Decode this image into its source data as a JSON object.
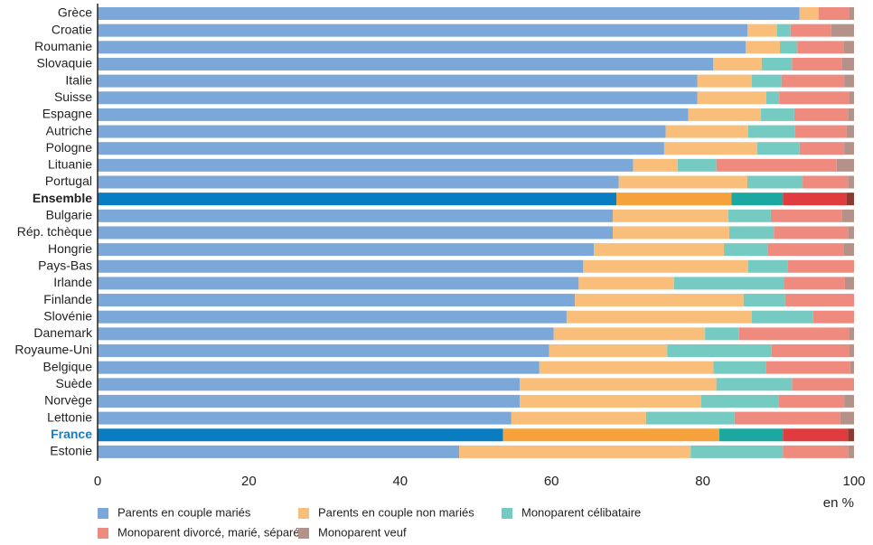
{
  "chart_data": {
    "type": "stacked_barh",
    "categories": [
      "Grèce",
      "Croatie",
      "Roumanie",
      "Slovaquie",
      "Italie",
      "Suisse",
      "Espagne",
      "Autriche",
      "Pologne",
      "Lituanie",
      "Portugal",
      "Ensemble",
      "Bulgarie",
      "Rép. tchèque",
      "Hongrie",
      "Pays-Bas",
      "Irlande",
      "Finlande",
      "Slovénie",
      "Danemark",
      "Royaume-Uni",
      "Belgique",
      "Suède",
      "Norvège",
      "Lettonie",
      "France",
      "Estonie"
    ],
    "series": [
      {
        "name": "Parents en couple mariés",
        "color": "#7ba7d9",
        "highlight_color": "#0a7dc2",
        "values": [
          92.8,
          85.9,
          85.7,
          81.4,
          79.3,
          79.3,
          78.1,
          75.1,
          74.9,
          70.8,
          68.9,
          68.6,
          68.1,
          68.1,
          65.6,
          64.2,
          63.6,
          63.1,
          62.0,
          60.3,
          59.7,
          58.4,
          55.8,
          55.8,
          54.7,
          53.6,
          47.8
        ]
      },
      {
        "name": "Parents en couple non mariés",
        "color": "#f9bf7a",
        "highlight_color": "#f5a23d",
        "values": [
          2.5,
          3.9,
          4.5,
          6.4,
          7.2,
          9.1,
          9.6,
          10.9,
          12.3,
          5.9,
          17.0,
          15.2,
          15.3,
          15.4,
          17.2,
          21.8,
          12.6,
          22.3,
          24.5,
          20.0,
          15.6,
          23.0,
          26.0,
          24.0,
          17.8,
          28.6,
          30.6
        ]
      },
      {
        "name": "Monoparent célibataire",
        "color": "#75cbc2",
        "highlight_color": "#1ba8a0",
        "values": [
          0,
          1.8,
          2.3,
          4.0,
          3.9,
          1.7,
          4.4,
          6.2,
          5.6,
          5.1,
          7.3,
          6.8,
          5.6,
          5.9,
          5.8,
          5.2,
          14.6,
          5.5,
          8.1,
          4.5,
          13.8,
          7.0,
          10.0,
          10.2,
          11.7,
          8.4,
          12.2
        ]
      },
      {
        "name": "Monoparent divorcé, marié, séparé",
        "color": "#ef8b7e",
        "highlight_color": "#e03c3f",
        "values": [
          4.1,
          5.4,
          6.1,
          6.6,
          8.3,
          9.3,
          7.1,
          6.8,
          5.9,
          15.9,
          6.0,
          8.4,
          9.4,
          9.8,
          10.0,
          8.8,
          8.0,
          9.1,
          5.4,
          14.6,
          10.3,
          11.1,
          8.1,
          8.7,
          14.0,
          8.6,
          8.6
        ]
      },
      {
        "name": "Monoparent veuf",
        "color": "#b4928a",
        "highlight_color": "#8a3a2e",
        "values": [
          0.6,
          3.0,
          1.4,
          1.6,
          1.3,
          0.6,
          0.8,
          1.0,
          1.3,
          2.3,
          0.8,
          1.0,
          1.6,
          0.8,
          1.4,
          0,
          1.2,
          0,
          0,
          0.6,
          0.6,
          0.5,
          0.1,
          1.3,
          1.8,
          0.8,
          0.8
        ]
      }
    ],
    "highlight": [
      {
        "category": "Ensemble",
        "label_color": "#222222"
      },
      {
        "category": "France",
        "label_color": "#1a7cc1"
      }
    ],
    "xlim": [
      0,
      100
    ],
    "xticks": [
      0,
      20,
      40,
      60,
      80,
      100
    ],
    "x_unit": "en %"
  }
}
